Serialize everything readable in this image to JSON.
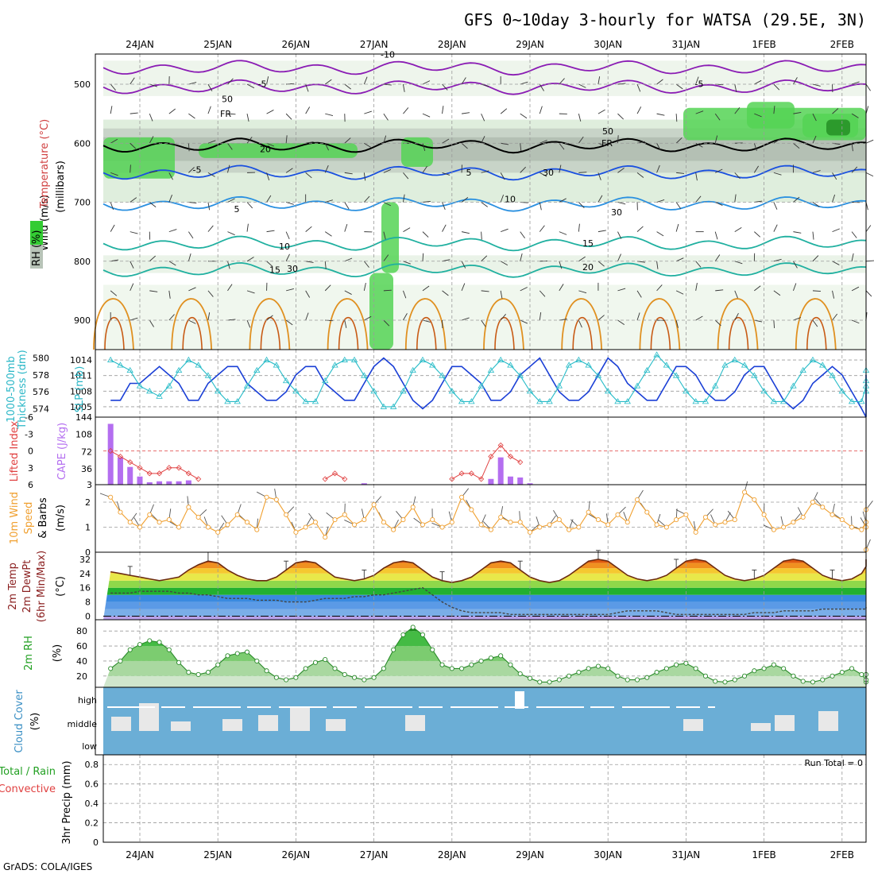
{
  "title": "GFS 0~10day 3-hourly for WATSA (29.5E, 3N)",
  "credit": "GrADS: COLA/IGES",
  "dates": [
    "24JAN",
    "25JAN",
    "26JAN",
    "27JAN",
    "28JAN",
    "29JAN",
    "30JAN",
    "31JAN",
    "1FEB",
    "2FEB"
  ],
  "colors": {
    "rh_green": "#33cc33",
    "rh_gray": "#b8c4b8",
    "cape": "#b46ef0",
    "lifted": "#e04040",
    "wind10": "#f0a030",
    "thickness": "#1a3fd6",
    "slp": "#28bcc8",
    "cloud": "#6baed6",
    "rh2m": "#3cc43c",
    "t_purple": "#8a1cb4",
    "t_blue": "#1a50e0",
    "t_teal": "#20b0a0",
    "t_orange": "#e09020"
  },
  "panels": {
    "upper": {
      "y_ticks": [
        "500",
        "600",
        "700",
        "800",
        "900"
      ],
      "ylabel_wind": "Wind (m/s)",
      "ylabel_temp": "Temperature (°C)",
      "ylabel_rh": "RH (%)",
      "ylabel_units": "(millibars)",
      "contour_labels": [
        "-10",
        "-5",
        "-5",
        "-5",
        "5",
        "5",
        "10",
        "10",
        "15",
        "15",
        "20",
        "20",
        "FR",
        "FR",
        "50",
        "50",
        "30",
        "30",
        "30"
      ]
    },
    "thickness": {
      "ylabel_left": "1000-500mb",
      "ylabel_left2": "Thickness (dm)",
      "ylabel_right": "SLP (mb)",
      "left_ticks": [
        "580",
        "578",
        "576",
        "574"
      ],
      "right_ticks": [
        "1014",
        "1011",
        "1008",
        "1005"
      ]
    },
    "cape": {
      "ylabel_left": "Lifted Index",
      "ylabel_right": "CAPE (J/kg)",
      "li_ticks": [
        "-6",
        "-3",
        "0",
        "3",
        "6"
      ],
      "cape_ticks": [
        "144",
        "108",
        "72",
        "36",
        "3"
      ]
    },
    "wind10": {
      "ylabel_1": "10m Wind",
      "ylabel_2": "Speed",
      "ylabel_3": "& Barbs",
      "ylabel_units": "(m/s)",
      "ticks": [
        "2",
        "1",
        "0"
      ]
    },
    "temp2m": {
      "ylabel_1": "2m Temp",
      "ylabel_2": "2m DewPt",
      "ylabel_3": "(6hr Min/Max)",
      "ylabel_units": "(°C)",
      "ticks": [
        "32",
        "24",
        "16",
        "8",
        "0"
      ]
    },
    "rh2m": {
      "ylabel": "2m RH",
      "ylabel_units": "(%)",
      "ticks": [
        "80",
        "60",
        "40",
        "20"
      ]
    },
    "cloud": {
      "ylabel": "Cloud Cover",
      "ylabel_units": "(%)",
      "levels": [
        "high",
        "middle",
        "low"
      ]
    },
    "precip": {
      "ylabel_1": "Total / Rain",
      "ylabel_2": "Convective",
      "ylabel_3": "3hr Precip (mm)",
      "ticks": [
        "0.8",
        "0.6",
        "0.4",
        "0.2",
        "0"
      ],
      "run_total": "Run Total = 0"
    }
  },
  "chart_data": [
    {
      "type": "line",
      "title": "",
      "panel": "thickness_slp",
      "x_step_hours": 3,
      "series": [
        {
          "name": "1000-500mb Thickness (dm)",
          "axis": "left",
          "values": [
            575,
            575,
            577,
            577,
            578,
            579,
            578,
            577,
            575,
            575,
            577,
            578,
            579,
            579,
            577,
            576,
            575,
            575,
            576,
            578,
            579,
            579,
            577,
            576,
            575,
            575,
            577,
            579,
            580,
            579,
            577,
            575,
            574,
            575,
            577,
            579,
            579,
            578,
            577,
            575,
            575,
            576,
            578,
            579,
            580,
            578,
            576,
            575,
            575,
            576,
            578,
            580,
            579,
            577,
            576,
            575,
            575,
            577,
            579,
            579,
            578,
            576,
            575,
            575,
            576,
            578,
            579,
            579,
            577,
            575,
            574,
            575,
            577,
            578,
            579,
            578,
            576,
            574,
            573,
            575,
            577,
            578
          ]
        },
        {
          "name": "SLP (mb)",
          "axis": "right",
          "values": [
            1014,
            1013,
            1012,
            1009,
            1008,
            1007,
            1009,
            1012,
            1014,
            1013,
            1011,
            1008,
            1006,
            1006,
            1009,
            1012,
            1014,
            1013,
            1010,
            1008,
            1006,
            1006,
            1010,
            1013,
            1014,
            1014,
            1011,
            1008,
            1005,
            1005,
            1008,
            1012,
            1014,
            1013,
            1011,
            1008,
            1006,
            1006,
            1009,
            1012,
            1014,
            1013,
            1011,
            1008,
            1006,
            1006,
            1009,
            1013,
            1014,
            1013,
            1011,
            1008,
            1006,
            1006,
            1009,
            1012,
            1015,
            1013,
            1011,
            1008,
            1006,
            1006,
            1009,
            1013,
            1014,
            1013,
            1011,
            1008,
            1006,
            1006,
            1009,
            1012,
            1014,
            1013,
            1011,
            1008,
            1006,
            1006,
            1009,
            1012,
            1008,
            1010
          ]
        }
      ],
      "ylim_left": [
        573,
        581
      ],
      "ylim_right": [
        1003,
        1016
      ]
    },
    {
      "type": "bar",
      "title": "",
      "panel": "cape_lifted_index",
      "x_step_hours": 3,
      "series": [
        {
          "name": "CAPE (J/kg)",
          "axis": "right",
          "values": [
            130,
            60,
            40,
            20,
            8,
            10,
            10,
            10,
            12,
            0,
            0,
            0,
            0,
            0,
            0,
            0,
            0,
            0,
            0,
            0,
            0,
            0,
            0,
            0,
            0,
            0,
            6,
            0,
            0,
            0,
            0,
            0,
            0,
            0,
            0,
            0,
            0,
            0,
            0,
            15,
            60,
            20,
            18,
            6,
            0,
            0,
            0,
            0,
            0,
            0,
            0,
            0,
            0,
            0,
            0,
            0,
            0,
            0,
            0,
            0,
            0,
            0,
            0,
            0,
            0,
            0,
            0,
            0,
            0,
            0,
            0,
            0,
            0,
            0,
            0,
            0,
            0,
            0,
            0,
            0,
            0,
            0
          ]
        },
        {
          "name": "Lifted Index",
          "axis": "left",
          "values": [
            0,
            1,
            2,
            3,
            4,
            4,
            3,
            3,
            4,
            5,
            6,
            6,
            6,
            6,
            6,
            6,
            6,
            6,
            6,
            6,
            6,
            6,
            5,
            4,
            5,
            6,
            6,
            6,
            6,
            6,
            6,
            6,
            6,
            6,
            6,
            5,
            4,
            4,
            5,
            1,
            -1,
            1,
            2,
            6,
            6,
            6,
            6,
            6,
            6,
            6,
            6,
            6,
            6,
            6,
            6,
            6,
            6,
            6,
            6,
            6,
            6,
            6,
            6,
            6,
            6,
            6,
            6,
            6,
            6,
            6,
            6,
            6,
            6,
            6,
            6,
            6,
            6,
            6,
            6,
            6,
            6,
            6
          ]
        }
      ],
      "ylim_cape": [
        3,
        144
      ],
      "ylim_li": [
        6,
        -6
      ]
    },
    {
      "type": "line",
      "title": "",
      "panel": "wind10m",
      "x_step_hours": 3,
      "series": [
        {
          "name": "10m Wind Speed (m/s)",
          "values": [
            2.2,
            1.6,
            1.2,
            1.0,
            1.5,
            1.2,
            1.3,
            1.0,
            1.8,
            1.4,
            1.0,
            0.8,
            1.1,
            1.5,
            1.2,
            0.9,
            2.2,
            2.1,
            1.5,
            0.8,
            1.0,
            1.2,
            0.6,
            1.3,
            1.5,
            1.1,
            1.3,
            1.9,
            1.2,
            0.9,
            1.3,
            1.8,
            1.1,
            1.3,
            1.0,
            1.2,
            2.2,
            1.7,
            1.1,
            0.9,
            1.4,
            1.2,
            1.2,
            0.8,
            1.0,
            1.1,
            1.3,
            0.9,
            1.0,
            1.6,
            1.3,
            1.1,
            1.5,
            1.2,
            2.1,
            1.6,
            1.1,
            1.0,
            1.3,
            1.5,
            0.8,
            1.4,
            1.1,
            1.2,
            1.3,
            2.4,
            2.1,
            1.5,
            0.9,
            1.0,
            1.2,
            1.4,
            2.0,
            1.8,
            1.5,
            1.3,
            1.0,
            0.9,
            1.2,
            1.7,
            1.0,
            0.1
          ]
        }
      ],
      "ylim": [
        0,
        2.7
      ]
    },
    {
      "type": "area",
      "title": "",
      "panel": "temp2m",
      "x_step_hours": 3,
      "series": [
        {
          "name": "2m Temp (°C)",
          "values": [
            25,
            24,
            23,
            22,
            21,
            20,
            21,
            22,
            26,
            29,
            31,
            30,
            26,
            23,
            21,
            20,
            20,
            22,
            26,
            30,
            31,
            30,
            26,
            22,
            21,
            20,
            21,
            23,
            27,
            30,
            31,
            30,
            26,
            22,
            20,
            19,
            20,
            22,
            26,
            30,
            31,
            30,
            26,
            22,
            20,
            19,
            20,
            23,
            27,
            31,
            32,
            31,
            27,
            23,
            21,
            20,
            21,
            23,
            27,
            31,
            32,
            31,
            27,
            23,
            21,
            20,
            21,
            23,
            27,
            31,
            32,
            31,
            27,
            23,
            21,
            20,
            21,
            24,
            28,
            31,
            32,
            30
          ]
        },
        {
          "name": "2m DewPt (°C)",
          "values": [
            13,
            13,
            13,
            14,
            14,
            14,
            14,
            13,
            13,
            12,
            12,
            11,
            10,
            10,
            10,
            9,
            9,
            9,
            8,
            8,
            8,
            9,
            10,
            10,
            10,
            11,
            11,
            12,
            12,
            13,
            14,
            15,
            16,
            12,
            8,
            5,
            3,
            2,
            2,
            2,
            2,
            1,
            1,
            1,
            1,
            1,
            1,
            1,
            1,
            1,
            1,
            1,
            2,
            3,
            3,
            3,
            3,
            2,
            1,
            1,
            1,
            1,
            1,
            1,
            1,
            1,
            2,
            2,
            2,
            3,
            3,
            3,
            3,
            4,
            4,
            4,
            4,
            4,
            4,
            4,
            4,
            5
          ]
        }
      ],
      "ylim": [
        -2,
        36
      ]
    },
    {
      "type": "area",
      "title": "",
      "panel": "rh2m",
      "x_step_hours": 3,
      "series": [
        {
          "name": "2m RH (%)",
          "values": [
            30,
            40,
            55,
            62,
            67,
            65,
            55,
            38,
            25,
            22,
            25,
            35,
            47,
            50,
            52,
            40,
            27,
            18,
            15,
            18,
            30,
            38,
            42,
            30,
            22,
            18,
            15,
            18,
            30,
            55,
            75,
            85,
            75,
            55,
            35,
            30,
            30,
            35,
            40,
            44,
            47,
            35,
            23,
            17,
            12,
            12,
            15,
            20,
            25,
            30,
            33,
            30,
            20,
            15,
            15,
            18,
            25,
            30,
            35,
            37,
            30,
            20,
            13,
            12,
            15,
            20,
            27,
            30,
            35,
            30,
            20,
            13,
            12,
            15,
            20,
            25,
            30,
            22,
            15,
            12,
            15,
            22
          ]
        }
      ],
      "ylim": [
        5,
        95
      ]
    },
    {
      "type": "bar",
      "title": "",
      "panel": "cloud_cover",
      "categories": [
        "high",
        "middle",
        "low"
      ],
      "note": "",
      "values": [
        95,
        20,
        0
      ]
    },
    {
      "type": "bar",
      "title": "",
      "panel": "precip3h",
      "x_step_hours": 3,
      "series": [
        {
          "name": "Total / Rain",
          "values": []
        },
        {
          "name": "Convective",
          "values": []
        }
      ],
      "ylim": [
        0,
        0.9
      ],
      "run_total": 0
    }
  ]
}
